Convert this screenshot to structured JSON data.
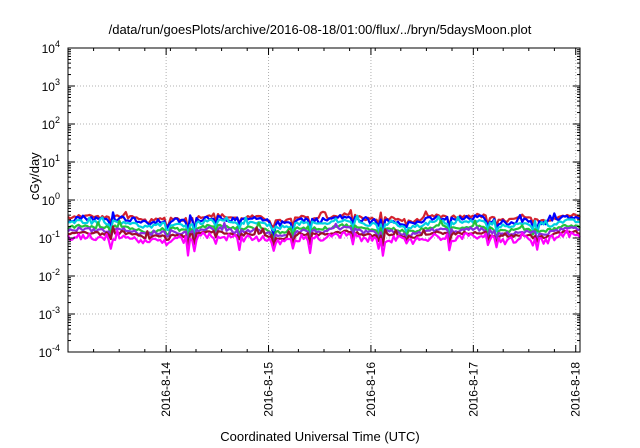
{
  "chart_data": {
    "type": "line",
    "title": "/data/run/goesPlots/archive/2016-08-18/01:00/flux/../bryn/5daysMoon.plot",
    "xlabel": "Coordinated Universal Time (UTC)",
    "ylabel": "cGy/day",
    "y_scale": "log",
    "ylim": [
      0.0001,
      10000
    ],
    "y_ticks": [
      {
        "base": "10",
        "exp": "-4"
      },
      {
        "base": "10",
        "exp": "-3"
      },
      {
        "base": "10",
        "exp": "-2"
      },
      {
        "base": "10",
        "exp": "-1"
      },
      {
        "base": "10",
        "exp": "0"
      },
      {
        "base": "10",
        "exp": "1"
      },
      {
        "base": "10",
        "exp": "2"
      },
      {
        "base": "10",
        "exp": "3"
      },
      {
        "base": "10",
        "exp": "4"
      }
    ],
    "xlim": [
      "2016-08-13T01:00",
      "2016-08-18T01:00"
    ],
    "x_ticks": [
      "2016-8-14",
      "2016-8-15",
      "2016-8-16",
      "2016-8-17",
      "2016-8-18"
    ],
    "grid": true,
    "series": [
      {
        "color": "#d4232e",
        "level": 0.34,
        "variability": 0.22
      },
      {
        "color": "#0000ff",
        "level": 0.3,
        "variability": 0.3
      },
      {
        "color": "#00cfe0",
        "level": 0.24,
        "variability": 0.22
      },
      {
        "color": "#24c23a",
        "level": 0.18,
        "variability": 0.18
      },
      {
        "color": "#8a2be2",
        "level": 0.15,
        "variability": 0.22
      },
      {
        "color": "#9c0f2b",
        "level": 0.125,
        "variability": 0.18
      },
      {
        "color": "#ff00ff",
        "level": 0.1,
        "variability": 0.45
      }
    ]
  }
}
